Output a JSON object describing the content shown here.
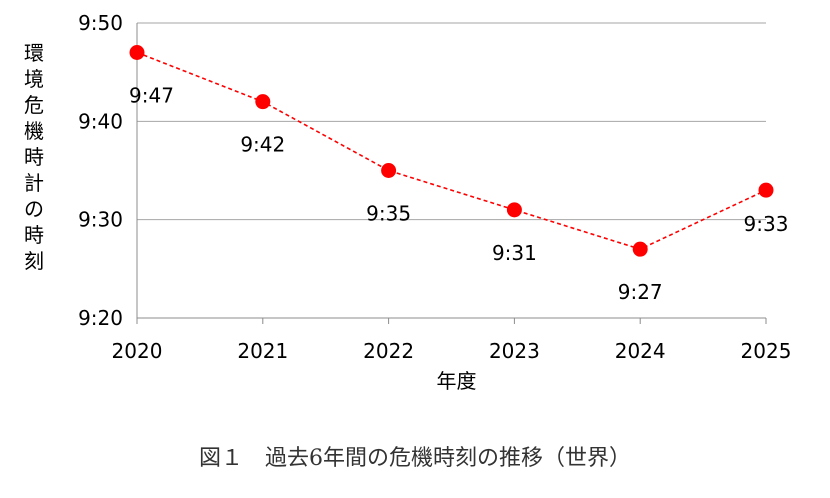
{
  "caption": "図１　過去6年間の危機時刻の推移（世界）",
  "chart_data": {
    "type": "line",
    "title": "",
    "xlabel": "年度",
    "ylabel": "環境危機時計の時刻",
    "categories": [
      "2020",
      "2021",
      "2022",
      "2023",
      "2024",
      "2025"
    ],
    "values_minutes_after_9": [
      47,
      42,
      35,
      31,
      27,
      33
    ],
    "data_labels": [
      "9:47",
      "9:42",
      "9:35",
      "9:31",
      "9:27",
      "9:33"
    ],
    "y_ticks": [
      "9:20",
      "9:30",
      "9:40",
      "9:50"
    ],
    "ylim_minutes_after_9": [
      20,
      50
    ],
    "grid": true,
    "legend": "none",
    "series_color": "#ff0000",
    "line_style": "dashed",
    "grid_color": "#a6a6a6"
  }
}
